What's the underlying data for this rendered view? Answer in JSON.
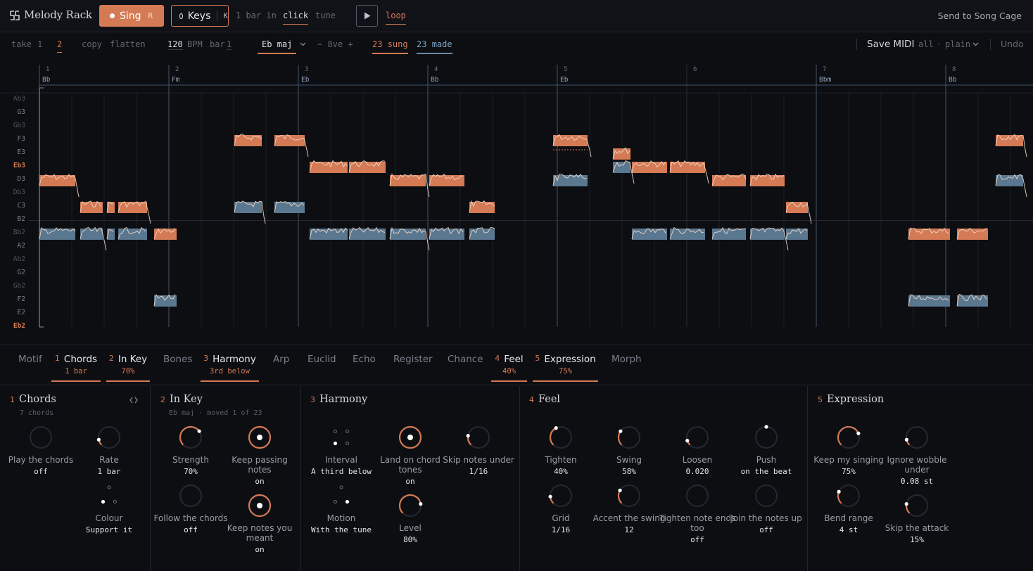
{
  "app": {
    "title": "Melody Rack"
  },
  "topbar": {
    "sing_label": "Sing",
    "sing_key": "R",
    "keys_label": "Keys",
    "keys_key": "K",
    "count_in": "1 bar in",
    "click": "click",
    "tune": "tune",
    "loop": "loop",
    "send": "Send to Song Cage"
  },
  "toolbar": {
    "take_label": "take",
    "take_1": "1",
    "take_2": "2",
    "copy": "copy",
    "flatten": "flatten",
    "bpm_value": "120",
    "bpm_label": "BPM",
    "bar_label": "bar",
    "bar_value": "1",
    "key": "Eb maj",
    "octave": "− 8ve +",
    "sung_num": "23",
    "sung_label": "sung",
    "made_num": "23",
    "made_label": "made",
    "save_midi": "Save MIDI",
    "scope": "all",
    "style": "plain",
    "undo": "Undo"
  },
  "roll": {
    "pitches": [
      "Ab3",
      "G3",
      "Gb3",
      "F3",
      "E3",
      "Eb3",
      "D3",
      "Db3",
      "C3",
      "B2",
      "Bb2",
      "A2",
      "Ab2",
      "G2",
      "Gb2",
      "F2",
      "E2",
      "Eb2"
    ],
    "bars": [
      "1",
      "2",
      "3",
      "4",
      "5",
      "6",
      "7",
      "8"
    ],
    "chords": [
      "Bb",
      "Fm",
      "Eb",
      "Bb",
      "Eb",
      "Bbm",
      "Bb"
    ],
    "colors": {
      "sung": "#d47a55",
      "made": "#5a7790",
      "trace": "#f0d7c5"
    }
  },
  "tabs": [
    {
      "label": "Motif"
    },
    {
      "num": "1",
      "label": "Chords",
      "sub": "1 bar"
    },
    {
      "num": "2",
      "label": "In Key",
      "sub": "70%"
    },
    {
      "label": "Bones"
    },
    {
      "num": "3",
      "label": "Harmony",
      "sub": "3rd below"
    },
    {
      "label": "Arp"
    },
    {
      "label": "Euclid"
    },
    {
      "label": "Echo"
    },
    {
      "label": "Register"
    },
    {
      "label": "Chance"
    },
    {
      "num": "4",
      "label": "Feel",
      "sub": "40%"
    },
    {
      "num": "5",
      "label": "Expression",
      "sub": "75%"
    },
    {
      "label": "Morph"
    }
  ],
  "panels": {
    "chords": {
      "num": "1",
      "title": "Chords",
      "sub": "7 chords",
      "knobs": [
        {
          "label": "Play the chords",
          "value": "off"
        },
        {
          "label": "Rate",
          "value": "1 bar"
        },
        {
          "label": "Colour",
          "value": "Support it"
        }
      ]
    },
    "inkey": {
      "num": "2",
      "title": "In Key",
      "sub": "Eb maj · moved 1 of 23",
      "knobs": [
        {
          "label": "Strength",
          "value": "70%",
          "level": 0.7
        },
        {
          "label": "Keep passing notes",
          "value": "on"
        },
        {
          "label": "Follow the chords",
          "value": "off"
        },
        {
          "label": "Keep notes you meant",
          "value": "on"
        }
      ]
    },
    "harmony": {
      "num": "3",
      "title": "Harmony",
      "knobs": [
        {
          "label": "Interval",
          "value": "A third below"
        },
        {
          "label": "Land on chord tones",
          "value": "on"
        },
        {
          "label": "Skip notes under",
          "value": "1/16"
        },
        {
          "label": "Motion",
          "value": "With the tune"
        },
        {
          "label": "Level",
          "value": "80%",
          "level": 0.8
        }
      ]
    },
    "feel": {
      "num": "4",
      "title": "Feel",
      "knobs": [
        {
          "label": "Tighten",
          "value": "40%",
          "level": 0.4
        },
        {
          "label": "Swing",
          "value": "58%",
          "level": 0.28
        },
        {
          "label": "Loosen",
          "value": "0.020",
          "level": 0.1
        },
        {
          "label": "Push",
          "value": "on the beat",
          "level": 0.5
        },
        {
          "label": "Grid",
          "value": "1/16",
          "level": 0.15
        },
        {
          "label": "Accent the swing",
          "value": "12",
          "level": 0.3
        },
        {
          "label": "Tighten note ends too",
          "value": "off",
          "level": 0
        },
        {
          "label": "Join the notes up",
          "value": "off",
          "level": 0
        }
      ]
    },
    "expression": {
      "num": "5",
      "title": "Expression",
      "knobs": [
        {
          "label": "Keep my singing",
          "value": "75%",
          "level": 0.75
        },
        {
          "label": "Ignore wobble under",
          "value": "0.08 st",
          "level": 0.12
        },
        {
          "label": "Bend range",
          "value": "4 st",
          "level": 0.25
        },
        {
          "label": "Skip the attack",
          "value": "15%",
          "level": 0.2
        }
      ]
    }
  }
}
